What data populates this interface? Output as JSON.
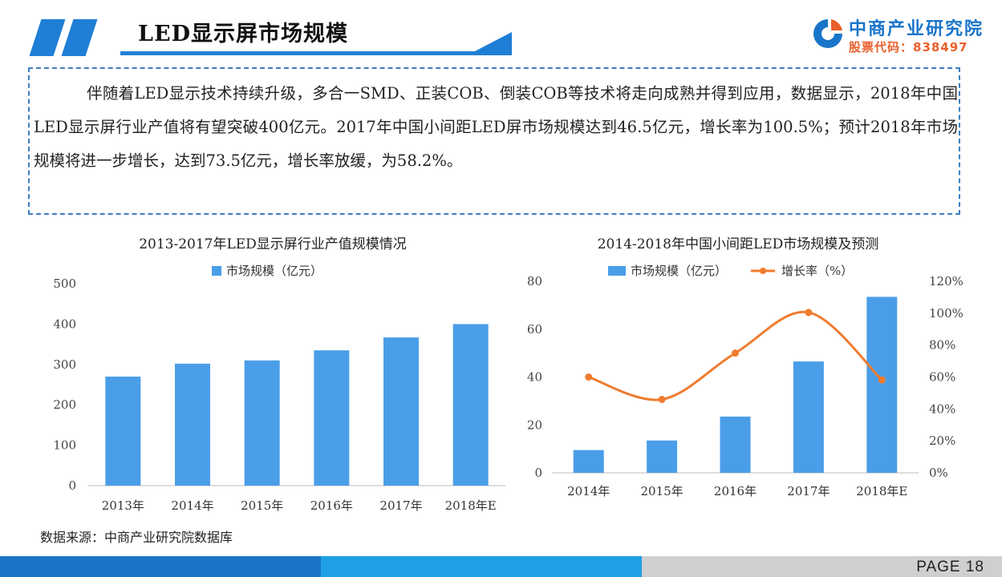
{
  "header": {
    "title": "LED显示屏市场规模",
    "logo_name": "中商产业研究院",
    "logo_code": "股票代码：838497"
  },
  "intro_text": "伴随着LED显示技术持续升级，多合一SMD、正装COB、倒装COB等技术将走向成熟并得到应用，数据显示，2018年中国LED显示屏行业产值将有望突破400亿元。2017年中国小间距LED屏市场规模达到46.5亿元，增长率为100.5%；预计2018年市场规模将进一步增长，达到73.5亿元，增长率放缓，为58.2%。",
  "chart_data": [
    {
      "type": "bar",
      "title": "2013-2017年LED显示屏行业产值规模情况",
      "categories": [
        "2013年",
        "2014年",
        "2015年",
        "2016年",
        "2017年",
        "2018年E"
      ],
      "series": [
        {
          "name": "市场规模（亿元）",
          "values": [
            270,
            302,
            310,
            335,
            367,
            400
          ]
        }
      ],
      "ylim": [
        0,
        500
      ],
      "yticks": [
        "0",
        "100",
        "200",
        "300",
        "400",
        "500"
      ],
      "legend": "top-center",
      "color": "#4a9ee8"
    },
    {
      "type": "bar",
      "title": "2014-2018年中国小间距LED市场规模及预测",
      "categories": [
        "2014年",
        "2015年",
        "2016年",
        "2017年",
        "2018年E"
      ],
      "series": [
        {
          "name": "市场规模（亿元）",
          "type": "bar",
          "axis": "left",
          "values": [
            9.5,
            13.5,
            23.5,
            46.5,
            73.5
          ]
        },
        {
          "name": "增长率（%）",
          "type": "line",
          "axis": "right",
          "values": [
            60,
            46,
            75,
            100.5,
            58.2
          ]
        }
      ],
      "ylim": [
        0,
        80
      ],
      "yticks": [
        "0",
        "20",
        "40",
        "60",
        "80"
      ],
      "y2lim": [
        0,
        120
      ],
      "y2ticks": [
        "0%",
        "20%",
        "40%",
        "60%",
        "80%",
        "100%",
        "120%"
      ],
      "legend": "top-center",
      "bar_color": "#4a9ee8",
      "line_color": "#f07b2e"
    }
  ],
  "source": "数据来源：中商产业研究院数据库",
  "footer": {
    "page_label": "PAGE  18"
  }
}
